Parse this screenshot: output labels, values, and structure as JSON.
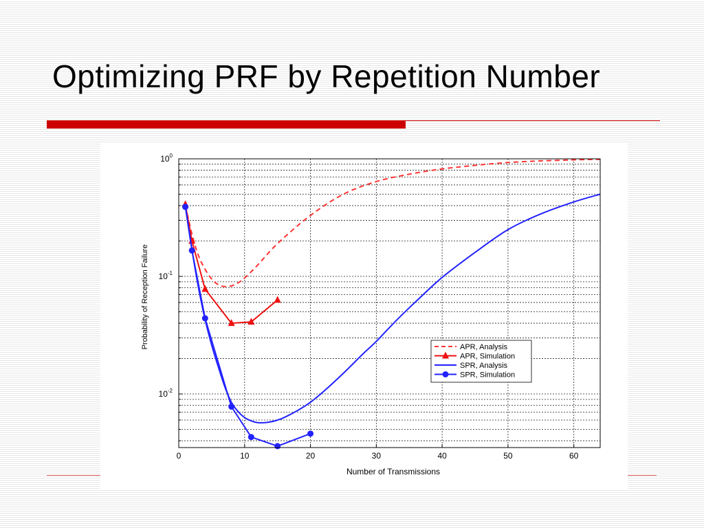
{
  "slide": {
    "title": "Optimizing PRF by Repetition Number",
    "accent_color": "#cc0000"
  },
  "chart_data": {
    "type": "line",
    "xlabel": "Number of Transmissions",
    "ylabel": "Probability of Reception Failure",
    "xlim": [
      0,
      64
    ],
    "ylim": [
      0.0035,
      1
    ],
    "yscale": "log",
    "grid": true,
    "x_ticks": [
      0,
      10,
      20,
      30,
      40,
      50,
      60
    ],
    "y_ticks": [
      {
        "value": 1,
        "base": "10",
        "exp": "0"
      },
      {
        "value": 0.1,
        "base": "10",
        "exp": "-1"
      },
      {
        "value": 0.01,
        "base": "10",
        "exp": "-2"
      }
    ],
    "legend_position": "right",
    "series": [
      {
        "name": "APR, Analysis",
        "color": "#ff3333",
        "style": "dashed",
        "marker": "none",
        "x": [
          1,
          2,
          3,
          4,
          5,
          6,
          7,
          8,
          9,
          10,
          12,
          15,
          20,
          25,
          30,
          35,
          40,
          45,
          50,
          55,
          60,
          64
        ],
        "y": [
          0.4,
          0.23,
          0.15,
          0.115,
          0.095,
          0.085,
          0.082,
          0.083,
          0.088,
          0.097,
          0.125,
          0.19,
          0.33,
          0.5,
          0.64,
          0.74,
          0.82,
          0.88,
          0.93,
          0.96,
          0.98,
          0.99
        ]
      },
      {
        "name": "APR, Simulation",
        "color": "#ee1111",
        "style": "solid",
        "marker": "triangle",
        "x": [
          1,
          2,
          4,
          8,
          11,
          15
        ],
        "y": [
          0.41,
          0.2,
          0.078,
          0.04,
          0.041,
          0.063
        ]
      },
      {
        "name": "SPR, Analysis",
        "color": "#2222ff",
        "style": "solid",
        "marker": "none",
        "x": [
          1,
          2,
          3,
          4,
          5,
          6,
          7,
          8,
          9,
          10,
          11,
          12,
          13,
          14,
          15,
          16,
          18,
          20,
          22,
          25,
          28,
          30,
          33,
          36,
          40,
          45,
          50,
          55,
          60,
          64
        ],
        "y": [
          0.4,
          0.17,
          0.08,
          0.043,
          0.026,
          0.017,
          0.0115,
          0.0085,
          0.0071,
          0.0063,
          0.0059,
          0.0057,
          0.0057,
          0.0058,
          0.006,
          0.0063,
          0.0072,
          0.0085,
          0.0105,
          0.015,
          0.022,
          0.028,
          0.042,
          0.061,
          0.098,
          0.16,
          0.25,
          0.34,
          0.43,
          0.5
        ]
      },
      {
        "name": "SPR, Simulation",
        "color": "#2222ff",
        "style": "solid",
        "marker": "circle",
        "x": [
          1,
          2,
          4,
          8,
          11,
          15,
          20
        ],
        "y": [
          0.39,
          0.166,
          0.044,
          0.0078,
          0.0043,
          0.0036,
          0.0046
        ]
      }
    ]
  }
}
